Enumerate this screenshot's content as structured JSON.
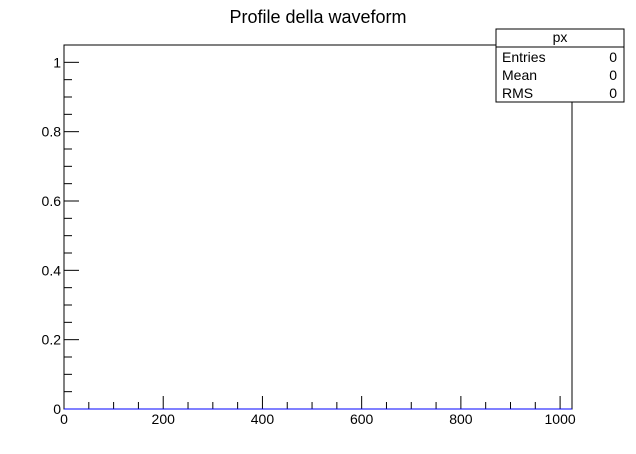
{
  "chart_data": {
    "type": "line",
    "title": "Profile della waveform",
    "xlabel": "",
    "ylabel": "",
    "xlim": [
      0,
      1024
    ],
    "ylim": [
      0,
      1.05
    ],
    "x_ticks": [
      0,
      200,
      400,
      600,
      800,
      1000
    ],
    "x_tick_labels": [
      "0",
      "200",
      "400",
      "600",
      "800",
      "1000"
    ],
    "y_ticks": [
      0,
      0.2,
      0.4,
      0.6,
      0.8,
      1
    ],
    "y_tick_labels": [
      "0",
      "0.2",
      "0.4",
      "0.6",
      "0.8",
      "1"
    ],
    "grid": false,
    "series": [
      {
        "color": "#0000ff",
        "x": [
          0,
          1024
        ],
        "values": [
          0,
          0
        ]
      }
    ],
    "stats_box": {
      "name": "px",
      "rows": [
        {
          "label": "Entries",
          "value": "0"
        },
        {
          "label": "Mean",
          "value": "0"
        },
        {
          "label": "RMS",
          "value": "0"
        }
      ],
      "placement": "top-right"
    }
  }
}
